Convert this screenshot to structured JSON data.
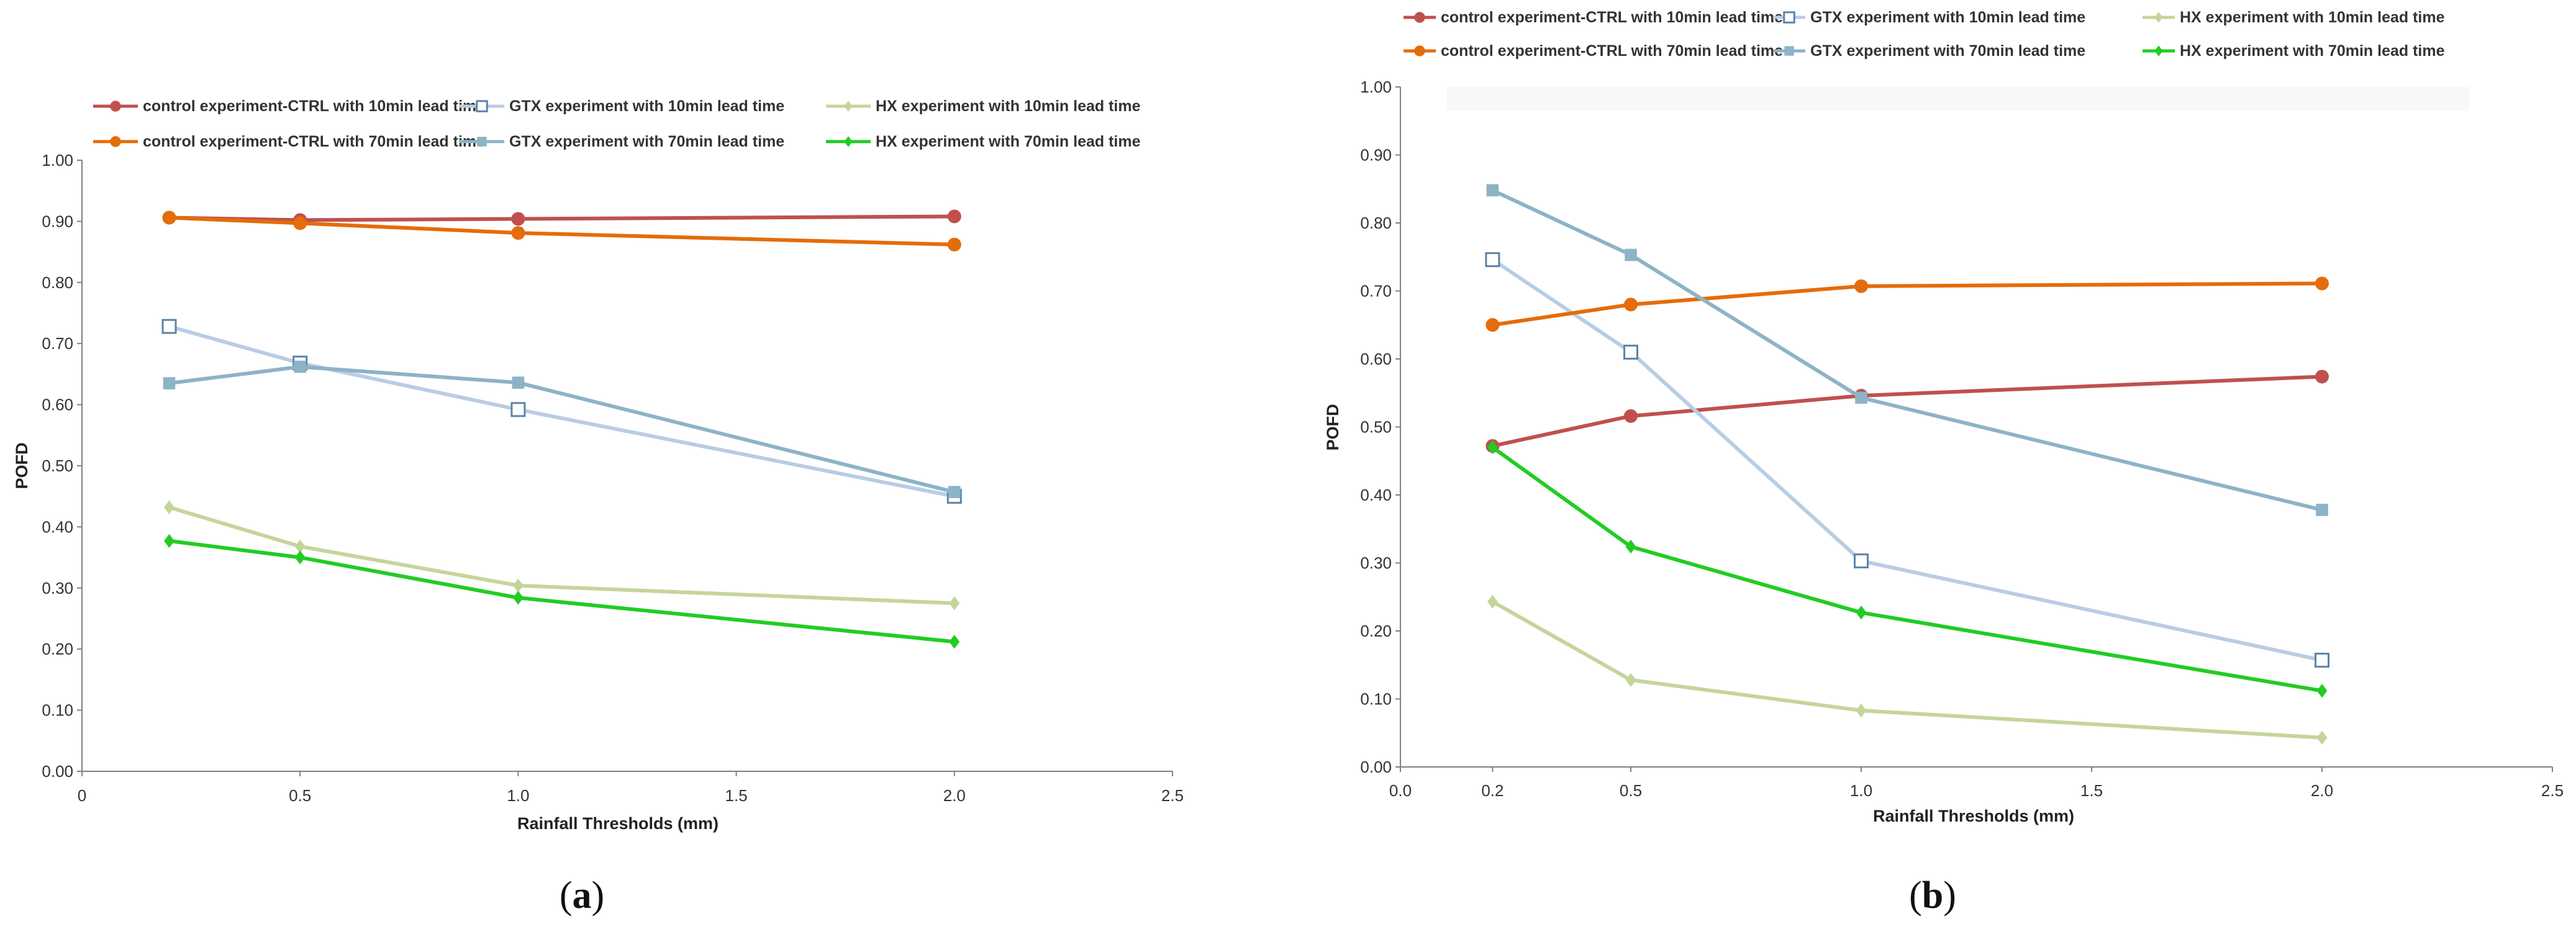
{
  "figure": {
    "captions": [
      {
        "open": "(",
        "letter": "a",
        "close": ")"
      },
      {
        "open": "(",
        "letter": "b",
        "close": ")"
      }
    ]
  },
  "chart_data": [
    {
      "type": "line",
      "panel": "a",
      "title": "",
      "xlabel": "Rainfall Thresholds (mm)",
      "ylabel": "POFD",
      "xlim": [
        0,
        2.5
      ],
      "ylim": [
        0,
        1.0
      ],
      "xticks": [
        0,
        0.5,
        1.0,
        1.5,
        2.0,
        2.5
      ],
      "xtick_labels": [
        "0",
        "0.5",
        "1.0",
        "1.5",
        "2.0",
        "2.5"
      ],
      "yticks": [
        0,
        0.1,
        0.2,
        0.3,
        0.4,
        0.5,
        0.6,
        0.7,
        0.8,
        0.9,
        1.0
      ],
      "ytick_labels": [
        "0.00",
        "0.10",
        "0.20",
        "0.30",
        "0.40",
        "0.50",
        "0.60",
        "0.70",
        "0.80",
        "0.90",
        "1.00"
      ],
      "grid": false,
      "legend_position": "top",
      "x": [
        0.2,
        0.5,
        1.0,
        2.0
      ],
      "series": [
        {
          "name": "control experiment-CTRL with 10min lead time",
          "color": "#c0504d",
          "marker": "circle",
          "values": [
            0.906,
            0.902,
            0.904,
            0.908
          ]
        },
        {
          "name": "GTX experiment with 10min lead time",
          "color": "#b8cde4",
          "marker": "square-open",
          "values": [
            0.728,
            0.668,
            0.592,
            0.45
          ]
        },
        {
          "name": "HX experiment with 10min lead time",
          "color": "#c4d59b",
          "marker": "diamond",
          "values": [
            0.432,
            0.368,
            0.304,
            0.275
          ]
        },
        {
          "name": "control experiment-CTRL with 70min lead time",
          "color": "#e46c0a",
          "marker": "circle",
          "values": [
            0.906,
            0.897,
            0.881,
            0.862
          ]
        },
        {
          "name": "GTX experiment with 70min lead time",
          "color": "#8db3c7",
          "marker": "square",
          "values": [
            0.635,
            0.662,
            0.636,
            0.457
          ]
        },
        {
          "name": "HX experiment with 70min lead time",
          "color": "#22cc22",
          "marker": "diamond",
          "values": [
            0.377,
            0.35,
            0.284,
            0.212
          ]
        }
      ]
    },
    {
      "type": "line",
      "panel": "b",
      "title": "",
      "xlabel": "Rainfall Thresholds (mm)",
      "ylabel": "POFD",
      "xlim": [
        0,
        2.5
      ],
      "ylim": [
        0,
        1.0
      ],
      "xticks": [
        0,
        0.2,
        0.5,
        1.0,
        1.5,
        2.0,
        2.5
      ],
      "xtick_labels": [
        "0.0",
        "0.2",
        "0.5",
        "1.0",
        "1.5",
        "2.0",
        "2.5"
      ],
      "yticks": [
        0,
        0.1,
        0.2,
        0.3,
        0.4,
        0.5,
        0.6,
        0.7,
        0.8,
        0.9,
        1.0
      ],
      "ytick_labels": [
        "0.00",
        "0.10",
        "0.20",
        "0.30",
        "0.40",
        "0.50",
        "0.60",
        "0.70",
        "0.80",
        "0.90",
        "1.00"
      ],
      "grid": false,
      "legend_position": "top",
      "x": [
        0.2,
        0.5,
        1.0,
        2.0
      ],
      "series": [
        {
          "name": "control experiment-CTRL with 10min lead time",
          "color": "#c0504d",
          "marker": "circle",
          "values": [
            0.472,
            0.516,
            0.546,
            0.574
          ]
        },
        {
          "name": "GTX experiment with 10min lead time",
          "color": "#b8cde4",
          "marker": "square-open",
          "values": [
            0.746,
            0.61,
            0.303,
            0.157
          ]
        },
        {
          "name": "HX experiment with 10min lead time",
          "color": "#c4d59b",
          "marker": "diamond",
          "values": [
            0.243,
            0.128,
            0.083,
            0.043
          ]
        },
        {
          "name": "control experiment-CTRL with 70min lead time",
          "color": "#e46c0a",
          "marker": "circle",
          "values": [
            0.65,
            0.68,
            0.707,
            0.711
          ]
        },
        {
          "name": "GTX experiment with 70min lead time",
          "color": "#8db3c7",
          "marker": "square",
          "values": [
            0.848,
            0.753,
            0.543,
            0.378
          ]
        },
        {
          "name": "HX experiment with 70min lead time",
          "color": "#22cc22",
          "marker": "diamond",
          "values": [
            0.47,
            0.324,
            0.227,
            0.112
          ]
        }
      ]
    }
  ]
}
